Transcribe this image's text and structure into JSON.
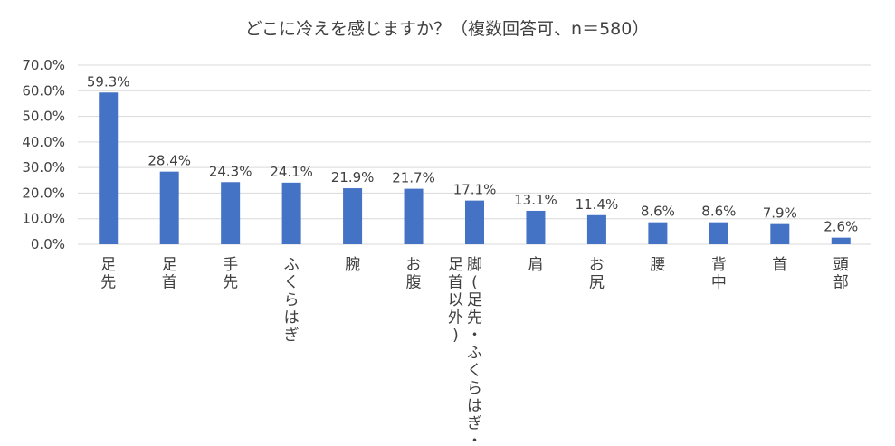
{
  "chart_data": {
    "type": "bar",
    "title": "どこに冷えを感じますか？（複数回答可、n＝580）",
    "xlabel": "",
    "ylabel": "",
    "ylim": [
      0,
      70
    ],
    "yticks": [
      "0.0%",
      "10.0%",
      "20.0%",
      "30.0%",
      "40.0%",
      "50.0%",
      "60.0%",
      "70.0%"
    ],
    "grid": true,
    "legend": "none",
    "bar_color": "#4472c4",
    "categories": [
      "足先",
      "足首",
      "手先",
      "ふくらはぎ",
      "腕",
      "お腹",
      "脚(足先・ふくらはぎ・足首以外)",
      "肩",
      "お尻",
      "腰",
      "背中",
      "首",
      "頭部"
    ],
    "category_columns": [
      [
        "足先"
      ],
      [
        "足首"
      ],
      [
        "手先"
      ],
      [
        "ふくらはぎ"
      ],
      [
        "腕"
      ],
      [
        "お腹"
      ],
      [
        "脚(足先・ふくらはぎ・",
        "足首以外)"
      ],
      [
        "肩"
      ],
      [
        "お尻"
      ],
      [
        "腰"
      ],
      [
        "背中"
      ],
      [
        "首"
      ],
      [
        "頭部"
      ]
    ],
    "values": [
      59.3,
      28.4,
      24.3,
      24.1,
      21.9,
      21.7,
      17.1,
      13.1,
      11.4,
      8.6,
      8.6,
      7.9,
      2.6
    ],
    "value_labels": [
      "59.3%",
      "28.4%",
      "24.3%",
      "24.1%",
      "21.9%",
      "21.7%",
      "17.1%",
      "13.1%",
      "11.4%",
      "8.6%",
      "8.6%",
      "7.9%",
      "2.6%"
    ]
  }
}
